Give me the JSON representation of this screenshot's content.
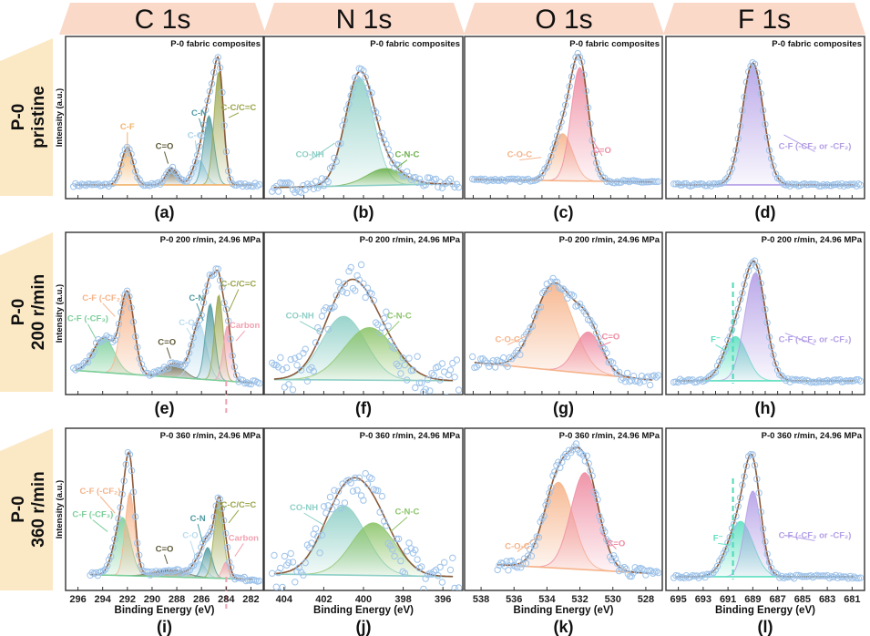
{
  "figure": {
    "column_headers": [
      "C 1s",
      "N 1s",
      "O 1s",
      "F 1s"
    ],
    "row_headers": [
      {
        "line1": "P-0",
        "line2": "pristine"
      },
      {
        "line1": "P-0",
        "line2": "200 r/min"
      },
      {
        "line1": "P-0",
        "line2": "360 r/min"
      }
    ],
    "ylabel": "Intensity (a.u.)",
    "xlabel": "Binding Energy (eV)",
    "colors": {
      "column_header_bg": "#fad9c8",
      "row_header_bg": "#fbe9c6",
      "data_points": "#9ec3ea",
      "envelope": "#8a5a3a",
      "carbon_ref_line": "#f2a0b0",
      "fluoride_ref_line": "#4fd8b8"
    }
  },
  "chart_data": [
    {
      "type": "line",
      "panel": "(a)",
      "title": "P-0 fabric composites",
      "core_level": "C 1s",
      "xlim": [
        297,
        281
      ],
      "ticks": [
        296,
        294,
        292,
        290,
        288,
        286,
        284,
        282
      ],
      "show_tick_labels": false,
      "noise": 0.012,
      "baseline": [
        0.02,
        0.02
      ],
      "peaks": [
        {
          "label": "C-F",
          "center": 292.0,
          "fwhm": 1.1,
          "height": 0.27,
          "color": "#f2b36b",
          "label_pos": [
            292.0,
            0.42
          ]
        },
        {
          "label": "C=O",
          "center": 288.4,
          "fwhm": 1.1,
          "height": 0.12,
          "color": "#5f5a3a",
          "label_pos": [
            289.0,
            0.28
          ]
        },
        {
          "label": "C-O",
          "center": 286.2,
          "fwhm": 1.2,
          "height": 0.18,
          "color": "#a9d3e8",
          "label_pos": [
            286.5,
            0.36
          ]
        },
        {
          "label": "C-N",
          "center": 285.4,
          "fwhm": 1.0,
          "height": 0.5,
          "color": "#4f9aa0",
          "label_pos": [
            286.2,
            0.52
          ]
        },
        {
          "label": "C-C/C=C",
          "center": 284.6,
          "fwhm": 0.9,
          "height": 0.82,
          "color": "#9aa54a",
          "label_pos": [
            283.0,
            0.56
          ]
        }
      ]
    },
    {
      "type": "line",
      "panel": "(b)",
      "title": "P-0 fabric composites",
      "core_level": "N 1s",
      "xlim": [
        405,
        395
      ],
      "ticks": [
        404,
        403,
        402,
        401,
        400,
        399,
        398,
        397,
        396
      ],
      "show_tick_labels": false,
      "noise": 0.04,
      "baseline": [
        0.0,
        0.03
      ],
      "peaks": [
        {
          "label": "CO-NH",
          "center": 400.2,
          "fwhm": 1.7,
          "height": 0.78,
          "color": "#8ecfc6",
          "label_pos": [
            402.7,
            0.22
          ]
        },
        {
          "label": "C-N-C",
          "center": 398.9,
          "fwhm": 2.2,
          "height": 0.12,
          "color": "#6ab04a",
          "label_pos": [
            397.8,
            0.22
          ]
        }
      ]
    },
    {
      "type": "line",
      "panel": "(c)",
      "title": "P-0 fabric composites",
      "core_level": "O 1s",
      "xlim": [
        538.5,
        527
      ],
      "ticks": [
        538,
        537,
        536,
        535,
        534,
        533,
        532,
        531,
        530,
        529,
        528
      ],
      "show_tick_labels": false,
      "noise": 0.01,
      "baseline": [
        0.06,
        0.04
      ],
      "peaks": [
        {
          "label": "C-O-C",
          "center": 532.8,
          "fwhm": 1.4,
          "height": 0.34,
          "color": "#f6b389",
          "label_pos": [
            535.3,
            0.22
          ]
        },
        {
          "label": "C=O",
          "center": 531.8,
          "fwhm": 1.2,
          "height": 0.82,
          "color": "#ee8aa0",
          "label_pos": [
            530.5,
            0.25
          ]
        }
      ]
    },
    {
      "type": "line",
      "panel": "(d)",
      "title": "P-0 fabric composites",
      "core_level": "F 1s",
      "xlim": [
        696,
        680
      ],
      "ticks": [
        695,
        694,
        693,
        692,
        691,
        690,
        689,
        688,
        687,
        686,
        685,
        684,
        683,
        682,
        681
      ],
      "show_tick_labels": false,
      "noise": 0.01,
      "baseline": [
        0.02,
        0.02
      ],
      "peaks": [
        {
          "label": "C-F (-CF₃ or -CF₂)",
          "center": 689.0,
          "fwhm": 2.0,
          "height": 0.88,
          "color": "#b39ee6",
          "label_pos": [
            684.0,
            0.28
          ]
        }
      ]
    },
    {
      "type": "line",
      "panel": "(e)",
      "title": "P-0   200 r/min, 24.96 MPa",
      "core_level": "C 1s",
      "xlim": [
        297,
        281
      ],
      "ticks": [
        296,
        294,
        292,
        290,
        288,
        286,
        284,
        282
      ],
      "show_tick_labels": false,
      "noise": 0.02,
      "baseline": [
        0.1,
        0.0
      ],
      "ref_line": 284.0,
      "peaks": [
        {
          "label": "C-F (-CF₃)",
          "center": 293.9,
          "fwhm": 2.0,
          "height": 0.25,
          "color": "#7ccf9a",
          "label_pos": [
            295.2,
            0.45
          ]
        },
        {
          "label": "C-F (-CF₂)",
          "center": 292.0,
          "fwhm": 1.3,
          "height": 0.58,
          "color": "#f6b389",
          "label_pos": [
            294.0,
            0.6
          ]
        },
        {
          "label": "C=O",
          "center": 288.2,
          "fwhm": 1.8,
          "height": 0.1,
          "color": "#5f5a3a",
          "label_pos": [
            288.8,
            0.28
          ]
        },
        {
          "label": "C-O",
          "center": 286.2,
          "fwhm": 1.4,
          "height": 0.4,
          "color": "#b9dcef",
          "label_pos": [
            287.2,
            0.42
          ]
        },
        {
          "label": "C-N",
          "center": 285.3,
          "fwhm": 0.9,
          "height": 0.55,
          "color": "#4f9aa0",
          "label_pos": [
            286.4,
            0.6
          ]
        },
        {
          "label": "C-C/C=C",
          "center": 284.6,
          "fwhm": 0.8,
          "height": 0.62,
          "color": "#9aa54a",
          "label_pos": [
            283.0,
            0.7
          ]
        },
        {
          "label": "Carbon",
          "center": 283.9,
          "fwhm": 0.8,
          "height": 0.4,
          "color": "#f2a0b0",
          "label_pos": [
            282.5,
            0.4
          ]
        }
      ]
    },
    {
      "type": "line",
      "panel": "(f)",
      "title": "P-0   200 r/min, 24.96 MPa",
      "core_level": "N 1s",
      "xlim": [
        405,
        395
      ],
      "ticks": [
        404,
        403,
        402,
        401,
        400,
        399,
        398,
        397,
        396
      ],
      "show_tick_labels": false,
      "noise": 0.16,
      "baseline": [
        0.03,
        0.02
      ],
      "peaks": [
        {
          "label": "CO-NH",
          "center": 401.0,
          "fwhm": 2.6,
          "height": 0.46,
          "color": "#8ecfc6",
          "label_pos": [
            403.2,
            0.47
          ]
        },
        {
          "label": "C-N-C",
          "center": 399.7,
          "fwhm": 3.0,
          "height": 0.38,
          "color": "#8cc46a",
          "label_pos": [
            398.2,
            0.47
          ]
        }
      ]
    },
    {
      "type": "line",
      "panel": "(g)",
      "title": "P-0   200 r/min, 24.96 MPa",
      "core_level": "O 1s",
      "xlim": [
        538.5,
        527
      ],
      "ticks": [
        538,
        537,
        536,
        535,
        534,
        533,
        532,
        531,
        530,
        529,
        528
      ],
      "show_tick_labels": false,
      "noise": 0.04,
      "baseline": [
        0.16,
        0.02
      ],
      "peaks": [
        {
          "label": "C-O-C",
          "center": 533.3,
          "fwhm": 2.6,
          "height": 0.62,
          "color": "#f6b389",
          "label_pos": [
            536.0,
            0.3
          ]
        },
        {
          "label": "C=O",
          "center": 531.3,
          "fwhm": 1.8,
          "height": 0.3,
          "color": "#ee8aa0",
          "label_pos": [
            530.0,
            0.32
          ]
        }
      ]
    },
    {
      "type": "line",
      "panel": "(h)",
      "title": "P-0 200 r/min, 24.96 MPa",
      "core_level": "F 1s",
      "xlim": [
        696,
        680
      ],
      "ticks": [
        695,
        694,
        693,
        692,
        691,
        690,
        689,
        688,
        687,
        686,
        685,
        684,
        683,
        682,
        681
      ],
      "show_tick_labels": false,
      "noise": 0.012,
      "baseline": [
        0.02,
        0.02
      ],
      "ref_line": 690.6,
      "peaks": [
        {
          "label": "F⁻",
          "center": 690.4,
          "fwhm": 2.2,
          "height": 0.32,
          "color": "#5ee0c0",
          "label_pos": [
            692.0,
            0.3
          ]
        },
        {
          "label": "C-F (-CF₃ or -CF₂)",
          "center": 688.8,
          "fwhm": 2.0,
          "height": 0.78,
          "color": "#b39ee6",
          "label_pos": [
            684.0,
            0.3
          ]
        }
      ]
    },
    {
      "type": "line",
      "panel": "(i)",
      "title": "P-0   360 r/min, 24.96 MPa",
      "core_level": "C 1s",
      "xlim": [
        297,
        281
      ],
      "ticks": [
        296,
        294,
        292,
        290,
        288,
        286,
        284,
        282
      ],
      "show_tick_labels": true,
      "noise": 0.015,
      "baseline": [
        0.04,
        0.0
      ],
      "ref_line": 284.0,
      "data_start": 295,
      "peaks": [
        {
          "label": "C-F (-CF₃)",
          "center": 292.4,
          "fwhm": 1.5,
          "height": 0.42,
          "color": "#7ccf9a",
          "label_pos": [
            294.8,
            0.45
          ]
        },
        {
          "label": "C-F (-CF₂)",
          "center": 291.8,
          "fwhm": 0.9,
          "height": 0.6,
          "color": "#f6b389",
          "label_pos": [
            294.2,
            0.62
          ]
        },
        {
          "label": "C=O",
          "center": 288.5,
          "fwhm": 3.0,
          "height": 0.05,
          "color": "#5f5a3a",
          "label_pos": [
            289.0,
            0.2
          ]
        },
        {
          "label": "C-O",
          "center": 286.2,
          "fwhm": 1.2,
          "height": 0.12,
          "color": "#b9dcef",
          "label_pos": [
            286.9,
            0.3
          ]
        },
        {
          "label": "C-N",
          "center": 285.5,
          "fwhm": 0.9,
          "height": 0.22,
          "color": "#4f9aa0",
          "label_pos": [
            286.3,
            0.42
          ]
        },
        {
          "label": "C-C/C=C",
          "center": 284.6,
          "fwhm": 0.9,
          "height": 0.56,
          "color": "#9aa54a",
          "label_pos": [
            283.0,
            0.52
          ]
        },
        {
          "label": "Carbon",
          "center": 284.0,
          "fwhm": 0.7,
          "height": 0.12,
          "color": "#f2a0b0",
          "label_pos": [
            282.6,
            0.28
          ]
        }
      ]
    },
    {
      "type": "line",
      "panel": "(j)",
      "title": "P-0   360 r/min, 24.96 MPa",
      "core_level": "N 1s",
      "xlim": [
        405,
        395
      ],
      "ticks": [
        404,
        402,
        400,
        398,
        396
      ],
      "show_tick_labels": true,
      "noise": 0.14,
      "baseline": [
        0.04,
        0.02
      ],
      "peaks": [
        {
          "label": "CO-NH",
          "center": 401.0,
          "fwhm": 2.6,
          "height": 0.5,
          "color": "#8ecfc6",
          "label_pos": [
            403.0,
            0.5
          ]
        },
        {
          "label": "C-N-C",
          "center": 399.5,
          "fwhm": 2.6,
          "height": 0.38,
          "color": "#8cc46a",
          "label_pos": [
            397.8,
            0.47
          ]
        }
      ]
    },
    {
      "type": "line",
      "panel": "(k)",
      "title": "P-0   360 r/min, 24.96 MPa",
      "core_level": "O 1s",
      "xlim": [
        539,
        527
      ],
      "ticks": [
        538,
        536,
        534,
        532,
        530,
        528
      ],
      "show_tick_labels": true,
      "noise": 0.04,
      "baseline": [
        0.12,
        0.04
      ],
      "data_start": 537,
      "peaks": [
        {
          "label": "C-O-C",
          "center": 533.3,
          "fwhm": 2.1,
          "height": 0.62,
          "color": "#f6b389",
          "label_pos": [
            535.8,
            0.22
          ]
        },
        {
          "label": "C=O",
          "center": 531.7,
          "fwhm": 2.0,
          "height": 0.7,
          "color": "#ee8aa0",
          "label_pos": [
            529.8,
            0.24
          ]
        }
      ]
    },
    {
      "type": "line",
      "panel": "(l)",
      "title": "P-0 360 r/min, 24.96 MPa",
      "core_level": "F 1s",
      "xlim": [
        696,
        680
      ],
      "ticks": [
        695,
        693,
        691,
        689,
        687,
        685,
        683,
        681
      ],
      "show_tick_labels": true,
      "noise": 0.012,
      "baseline": [
        0.02,
        0.02
      ],
      "ref_line": 690.6,
      "peaks": [
        {
          "label": "F⁻",
          "center": 690.0,
          "fwhm": 2.4,
          "height": 0.4,
          "color": "#5ee0c0",
          "label_pos": [
            691.8,
            0.28
          ]
        },
        {
          "label": "C-F (-CF₃ or -CF₂)",
          "center": 689.0,
          "fwhm": 1.5,
          "height": 0.62,
          "color": "#b39ee6",
          "label_pos": [
            684.0,
            0.3
          ]
        }
      ]
    }
  ]
}
